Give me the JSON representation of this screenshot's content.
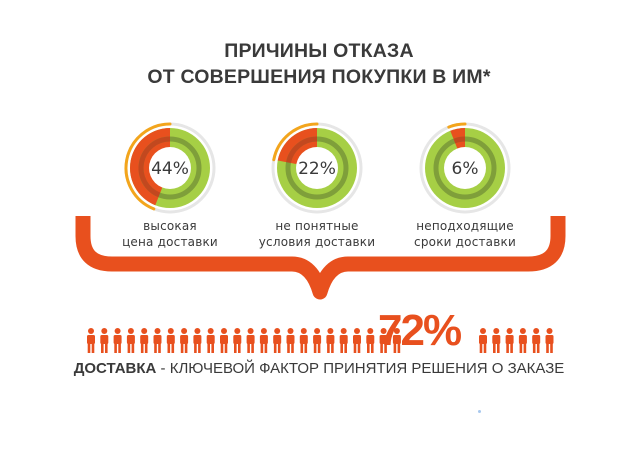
{
  "title": {
    "line1": "ПРИЧИНЫ ОТКАЗА",
    "line2": "ОТ СОВЕРШЕНИЯ ПОКУПКИ В ИМ*"
  },
  "chart_data": {
    "type": "pie",
    "title": "ПРИЧИНЫ ОТКАЗА ОТ СОВЕРШЕНИЯ ПОКУПКИ В ИМ*",
    "categories": [
      "высокая цена доставки",
      "не понятные условия доставки",
      "неподходящие сроки доставки"
    ],
    "values": [
      44,
      22,
      6
    ],
    "unit": "%",
    "items": [
      {
        "value": 44,
        "label_text": "44%",
        "caption": [
          "высокая",
          "цена доставки"
        ]
      },
      {
        "value": 22,
        "label_text": "22%",
        "caption": [
          "не понятные",
          "условия доставки"
        ]
      },
      {
        "value": 6,
        "label_text": "6%",
        "caption": [
          "неподходящие",
          "сроки доставки"
        ]
      }
    ],
    "summary": {
      "value": 72,
      "label_text": "72%",
      "people_total": 30,
      "people_left": 24,
      "people_right": 6
    }
  },
  "footer": {
    "bold": "ДОСТАВКА",
    "rest": " - КЛЮЧЕВОЙ ФАКТОР ПРИНЯТИЯ РЕШЕНИЯ О ЗАКАЗЕ"
  },
  "colors": {
    "orange": "#e8501e",
    "yellow": "#f3a51c",
    "green": "#a6cf45",
    "green_dark": "#7f9f3a",
    "ring_track": "#e6e6e6",
    "text": "#3a3a3a"
  }
}
